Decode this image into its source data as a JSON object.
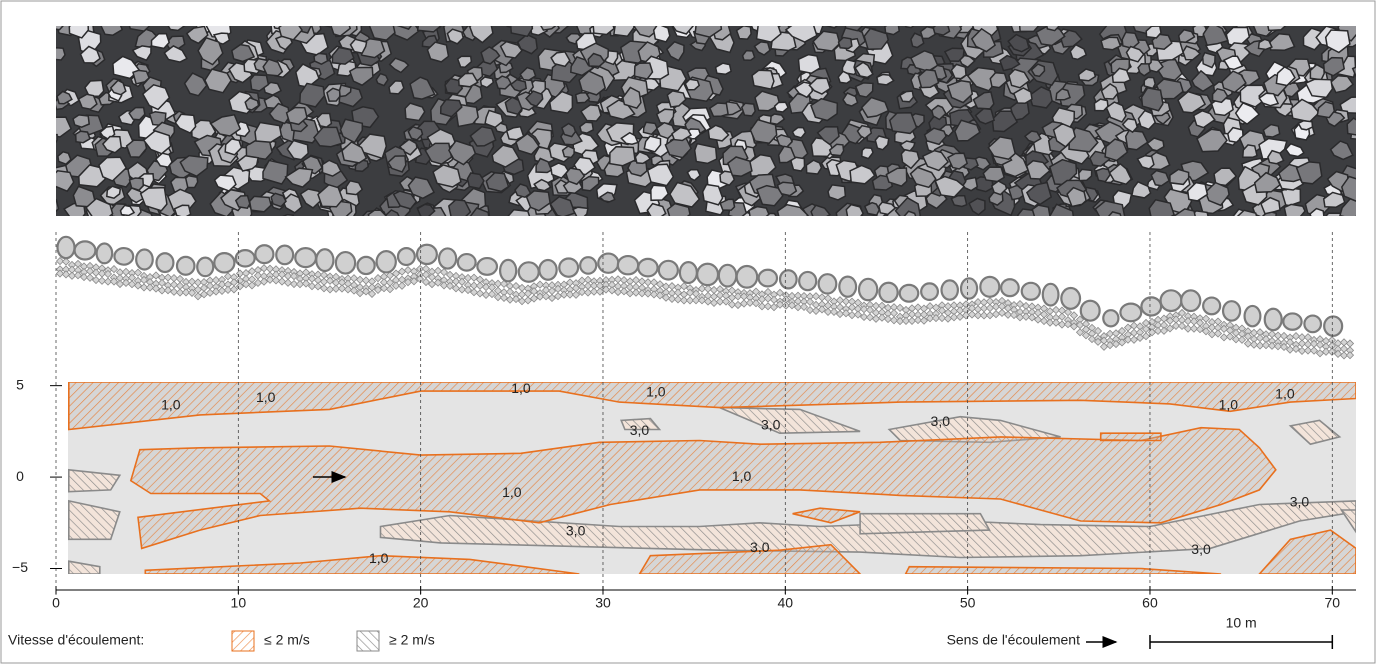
{
  "chart_data": {
    "type": "contour",
    "xlim": [
      0,
      71.3
    ],
    "ylim": [
      -5.3,
      5.2
    ],
    "xticks": [
      0,
      10,
      20,
      30,
      40,
      50,
      60,
      70
    ],
    "yticks": [
      5,
      0,
      {
        "value": -5,
        "label": "−5"
      }
    ],
    "grid": true,
    "legend_title": "Vitesse d'écoulement:",
    "series": [
      {
        "name": "≥ 2 m/s",
        "color": "#8a8a8a",
        "regions": [
          {
            "x": [
              17.8,
              21.6,
              30.9,
              35.3,
              38.6,
              41.9,
              49.6,
              54.0,
              60.0,
              66.0,
              71.3,
              71.3,
              68.2,
              63.3,
              56.2,
              49.6,
              44.1,
              36.4,
              28.7,
              21.1,
              17.8
            ],
            "y": [
              -2.7,
              -2.1,
              -2.7,
              -2.7,
              -2.5,
              -2.7,
              -2.4,
              -2.6,
              -2.7,
              -1.5,
              -1.3,
              -1.9,
              -2.4,
              -3.9,
              -4.3,
              -4.4,
              -4.1,
              -4.0,
              -3.8,
              -3.6,
              -3.3
            ]
          },
          {
            "x": [
              44.1,
              50.7,
              51.2,
              44.1
            ],
            "y": [
              -2.0,
              -2.0,
              -2.9,
              -3.1
            ]
          },
          {
            "x": [
              0.7,
              3.5,
              3.0,
              0.7
            ],
            "y": [
              0.4,
              0.1,
              -0.7,
              -0.8
            ]
          },
          {
            "x": [
              0.7,
              3.5,
              3.0,
              0.7
            ],
            "y": [
              -1.3,
              -1.9,
              -3.4,
              -3.4
            ]
          },
          {
            "x": [
              36.4,
              40.8,
              44.1,
              39.7
            ],
            "y": [
              3.8,
              3.7,
              2.5,
              2.4
            ]
          },
          {
            "x": [
              45.7,
              49.6,
              51.8,
              55.1,
              51.2,
              46.3
            ],
            "y": [
              2.6,
              3.3,
              3.1,
              2.2,
              1.9,
              2.0
            ]
          },
          {
            "x": [
              67.7,
              69.3,
              70.4,
              68.8
            ],
            "y": [
              2.8,
              3.1,
              2.2,
              1.8
            ]
          },
          {
            "x": [
              31.0,
              32.6,
              33.1,
              31.2
            ],
            "y": [
              3.1,
              3.2,
              2.6,
              2.6
            ]
          },
          {
            "x": [
              70.5,
              71.3,
              71.3
            ],
            "y": [
              -1.8,
              -1.8,
              -3.0
            ]
          },
          {
            "x": [
              0.7,
              2.4,
              2.4,
              0.7
            ],
            "y": [
              -4.6,
              -4.9,
              -5.3,
              -5.3
            ]
          }
        ]
      },
      {
        "name": "≤ 2 m/s",
        "color": "#e8701e",
        "regions": [
          {
            "x": [
              0.7,
              71.3,
              71.3,
              67.7,
              64.4,
              61.1,
              56.2,
              46.3,
              36.4,
              30.9,
              27.6,
              20.0,
              15.0,
              7.9,
              0.7
            ],
            "y": [
              5.2,
              5.2,
              4.3,
              4.1,
              3.6,
              4.0,
              4.2,
              4.1,
              3.8,
              4.1,
              4.7,
              4.7,
              3.7,
              3.4,
              2.6
            ]
          },
          {
            "x": [
              4.6,
              7.9,
              15.0,
              20.0,
              25.5,
              29.8,
              35.3,
              38.6,
              45.2,
              51.8,
              59.5,
              62.8,
              64.9,
              66.0,
              66.9,
              66.0,
              63.9,
              60.6,
              56.2,
              51.8,
              46.3,
              40.8,
              35.3,
              30.4,
              26.5,
              21.6,
              16.7,
              11.2,
              7.9,
              4.7,
              4.5,
              11.7,
              11.2,
              5.2,
              4.1
            ],
            "y": [
              1.5,
              1.6,
              1.7,
              1.2,
              1.3,
              1.9,
              2.0,
              1.8,
              1.9,
              2.2,
              2.0,
              2.7,
              2.6,
              1.6,
              0.4,
              -0.7,
              -1.5,
              -2.5,
              -2.4,
              -1.2,
              -1.0,
              -0.7,
              -0.7,
              -1.5,
              -2.5,
              -1.9,
              -1.7,
              -2.1,
              -2.9,
              -3.9,
              -2.2,
              -1.3,
              -0.9,
              -0.9,
              -0.2
            ]
          },
          {
            "x": [
              4.9,
              4.9,
              13.4,
              17.8,
              22.7,
              28.7
            ],
            "y": [
              -5.3,
              -5.1,
              -4.7,
              -4.3,
              -4.5,
              -5.3
            ]
          },
          {
            "x": [
              32.0,
              32.6,
              39.7,
              42.5,
              44.1
            ],
            "y": [
              -5.3,
              -4.3,
              -4.0,
              -3.7,
              -5.3
            ]
          },
          {
            "x": [
              46.6,
              46.8,
              59.5,
              63.9
            ],
            "y": [
              -5.3,
              -4.9,
              -5.0,
              -5.3
            ]
          },
          {
            "x": [
              66.0,
              67.7,
              69.9,
              71.3,
              71.3
            ],
            "y": [
              -5.3,
              -3.4,
              -2.9,
              -3.9,
              -5.3
            ]
          },
          {
            "x": [
              41.9,
              44.1,
              42.5,
              40.4
            ],
            "y": [
              -1.7,
              -1.9,
              -2.5,
              -2.0
            ]
          },
          {
            "x": [
              57.3,
              60.6,
              60.6,
              57.3
            ],
            "y": [
              2.4,
              2.4,
              2.0,
              2.0
            ]
          }
        ]
      }
    ],
    "contour_labels": [
      {
        "label": "1,0",
        "x": 6.3,
        "y": 3.9
      },
      {
        "label": "1,0",
        "x": 11.5,
        "y": 4.3
      },
      {
        "label": "1,0",
        "x": 25.5,
        "y": 4.8
      },
      {
        "label": "1,0",
        "x": 32.9,
        "y": 4.6
      },
      {
        "label": "3,0",
        "x": 32.0,
        "y": 2.5
      },
      {
        "label": "3,0",
        "x": 39.2,
        "y": 2.8
      },
      {
        "label": "3,0",
        "x": 48.5,
        "y": 3.0
      },
      {
        "label": "1,0",
        "x": 64.3,
        "y": 3.9
      },
      {
        "label": "1,0",
        "x": 67.4,
        "y": 4.5
      },
      {
        "label": "1,0",
        "x": 25.0,
        "y": -0.9
      },
      {
        "label": "1,0",
        "x": 37.6,
        "y": 0.0
      },
      {
        "label": "3,0",
        "x": 28.5,
        "y": -3.0
      },
      {
        "label": "3,0",
        "x": 38.6,
        "y": -3.9
      },
      {
        "label": "3,0",
        "x": 62.8,
        "y": -4.0
      },
      {
        "label": "3,0",
        "x": 68.2,
        "y": -1.4
      },
      {
        "label": "1,0",
        "x": 17.7,
        "y": -4.5
      }
    ],
    "flow_direction_label": "Sens de l'écoulement",
    "scale_bar": {
      "label": "10 m",
      "length": 10
    }
  }
}
